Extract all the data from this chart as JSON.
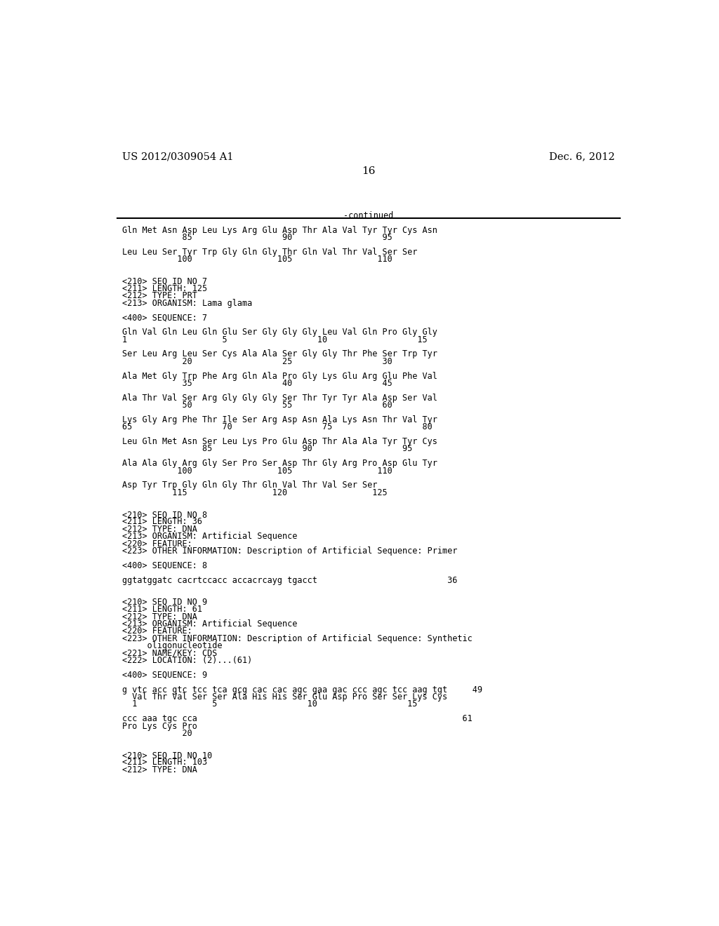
{
  "background_color": "#ffffff",
  "top_left_text": "US 2012/0309054 A1",
  "top_right_text": "Dec. 6, 2012",
  "page_number": "16",
  "continued_text": "-continued",
  "font_size_header": 10.5,
  "font_size_body": 8.5,
  "font_size_page": 11,
  "lines": [
    "Gln Met Asn Asp Leu Lys Arg Glu Asp Thr Ala Val Tyr Tyr Cys Asn",
    "            85                  90                  95",
    "",
    "Leu Leu Ser Tyr Trp Gly Gln Gly Thr Gln Val Thr Val Ser Ser",
    "           100                 105                 110",
    "",
    "",
    "<210> SEQ ID NO 7",
    "<211> LENGTH: 125",
    "<212> TYPE: PRT",
    "<213> ORGANISM: Lama glama",
    "",
    "<400> SEQUENCE: 7",
    "",
    "Gln Val Gln Leu Gln Glu Ser Gly Gly Gly Leu Val Gln Pro Gly Gly",
    "1                   5                  10                  15",
    "",
    "Ser Leu Arg Leu Ser Cys Ala Ala Ser Gly Gly Thr Phe Ser Trp Tyr",
    "            20                  25                  30",
    "",
    "Ala Met Gly Trp Phe Arg Gln Ala Pro Gly Lys Glu Arg Glu Phe Val",
    "            35                  40                  45",
    "",
    "Ala Thr Val Ser Arg Gly Gly Gly Ser Thr Tyr Tyr Ala Asp Ser Val",
    "            50                  55                  60",
    "",
    "Lys Gly Arg Phe Thr Ile Ser Arg Asp Asn Ala Lys Asn Thr Val Tyr",
    "65                  70                  75                  80",
    "",
    "Leu Gln Met Asn Ser Leu Lys Pro Glu Asp Thr Ala Ala Tyr Tyr Cys",
    "                85                  90                  95",
    "",
    "Ala Ala Gly Arg Gly Ser Pro Ser Asp Thr Gly Arg Pro Asp Glu Tyr",
    "           100                 105                 110",
    "",
    "Asp Tyr Trp Gly Gln Gly Thr Gln Val Thr Val Ser Ser",
    "          115                 120                 125",
    "",
    "",
    "<210> SEQ ID NO 8",
    "<211> LENGTH: 36",
    "<212> TYPE: DNA",
    "<213> ORGANISM: Artificial Sequence",
    "<220> FEATURE:",
    "<223> OTHER INFORMATION: Description of Artificial Sequence: Primer",
    "",
    "<400> SEQUENCE: 8",
    "",
    "ggtatggatc cacrtccacc accacrcayg tgacct                          36",
    "",
    "",
    "<210> SEQ ID NO 9",
    "<211> LENGTH: 61",
    "<212> TYPE: DNA",
    "<213> ORGANISM: Artificial Sequence",
    "<220> FEATURE:",
    "<223> OTHER INFORMATION: Description of Artificial Sequence: Synthetic",
    "     oligonucleotide",
    "<221> NAME/KEY: CDS",
    "<222> LOCATION: (2)...(61)",
    "",
    "<400> SEQUENCE: 9",
    "",
    "g vtc acc gtc tcc tca gcg cac cac agc gaa gac ccc agc tcc aag tgt     49",
    "  Val Thr Val Ser Ser Ala His His Ser Glu Asp Pro Ser Ser Lys Cys",
    "  1               5                  10                  15",
    "",
    "ccc aaa tgc cca                                                     61",
    "Pro Lys Cys Pro",
    "            20",
    "",
    "",
    "<210> SEQ ID NO 10",
    "<211> LENGTH: 103",
    "<212> TYPE: DNA"
  ]
}
